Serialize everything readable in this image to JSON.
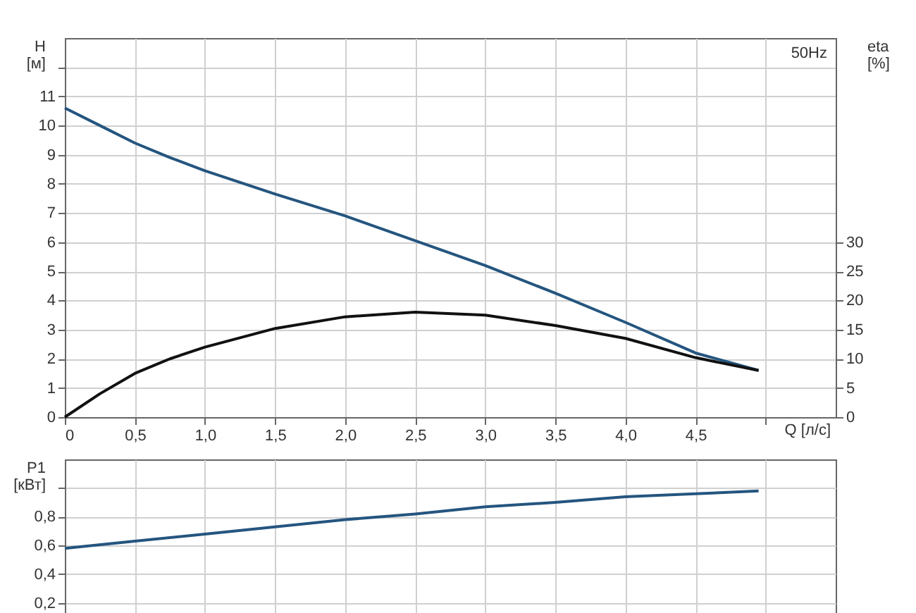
{
  "chart_data": [
    {
      "type": "line",
      "xlabel": "Q [л/с]",
      "ylabel": "H [м]",
      "y2label": "eta [%]",
      "annotations": [
        "50Hz"
      ],
      "x": [
        0,
        0.25,
        0.5,
        0.75,
        1.0,
        1.5,
        2.0,
        2.5,
        3.0,
        3.5,
        4.0,
        4.5,
        4.95
      ],
      "series": [
        {
          "color": "#24557f",
          "values": [
            10.6,
            10.0,
            9.4,
            8.9,
            8.45,
            7.65,
            6.9,
            6.05,
            5.2,
            4.25,
            3.25,
            2.2,
            1.6
          ]
        },
        {
          "color": "#111111",
          "axis": "y2",
          "values": [
            0,
            4,
            7.5,
            10,
            12,
            15.2,
            17.2,
            18,
            17.5,
            15.7,
            13.5,
            10.2,
            8
          ]
        }
      ],
      "xlim": [
        0,
        5.5
      ],
      "xticks": [
        0,
        {
          "value": 0.5,
          "label": "0,5"
        },
        {
          "value": 1,
          "label": "1,0"
        },
        {
          "value": 1.5,
          "label": "1,5"
        },
        {
          "value": 2,
          "label": "2,0"
        },
        {
          "value": 2.5,
          "label": "2,5"
        },
        {
          "value": 3,
          "label": "3,0"
        },
        {
          "value": 3.5,
          "label": "3,5"
        },
        {
          "value": 4,
          "label": "4,0"
        },
        {
          "value": 4.5,
          "label": "4,5"
        },
        {
          "value": 5,
          "label": null
        }
      ],
      "ylim": [
        0,
        13
      ],
      "yticks": [
        0,
        1,
        2,
        3,
        4,
        5,
        6,
        7,
        8,
        9,
        10,
        11,
        {
          "value": 12,
          "label": null
        }
      ],
      "y2lim": [
        0,
        65
      ],
      "y2ticks": [
        0,
        5,
        10,
        15,
        20,
        25,
        30
      ],
      "grid": true,
      "line_style": "solid"
    },
    {
      "type": "line",
      "ylabel": "P1 [кВт]",
      "x": [
        0,
        0.5,
        1.0,
        1.5,
        2.0,
        2.5,
        3.0,
        3.5,
        4.0,
        4.5,
        4.95
      ],
      "series": [
        {
          "color": "#24557f",
          "values": [
            0.58,
            0.63,
            0.68,
            0.73,
            0.78,
            0.82,
            0.87,
            0.9,
            0.94,
            0.96,
            0.98
          ]
        }
      ],
      "xlim": [
        0,
        5.5
      ],
      "xticks": [
        0,
        0.5,
        1,
        1.5,
        2,
        2.5,
        3,
        3.5,
        4,
        4.5,
        5
      ],
      "ylim": [
        0.1,
        1.2
      ],
      "yticks": [
        {
          "value": 0.2,
          "label": "0,2"
        },
        {
          "value": 0.4,
          "label": "0,4"
        },
        {
          "value": 0.6,
          "label": "0,6"
        },
        {
          "value": 0.8,
          "label": "0,8"
        },
        {
          "value": 1.0,
          "label": null
        }
      ],
      "grid": true,
      "tick_labels": "y",
      "line_style": "solid"
    }
  ]
}
